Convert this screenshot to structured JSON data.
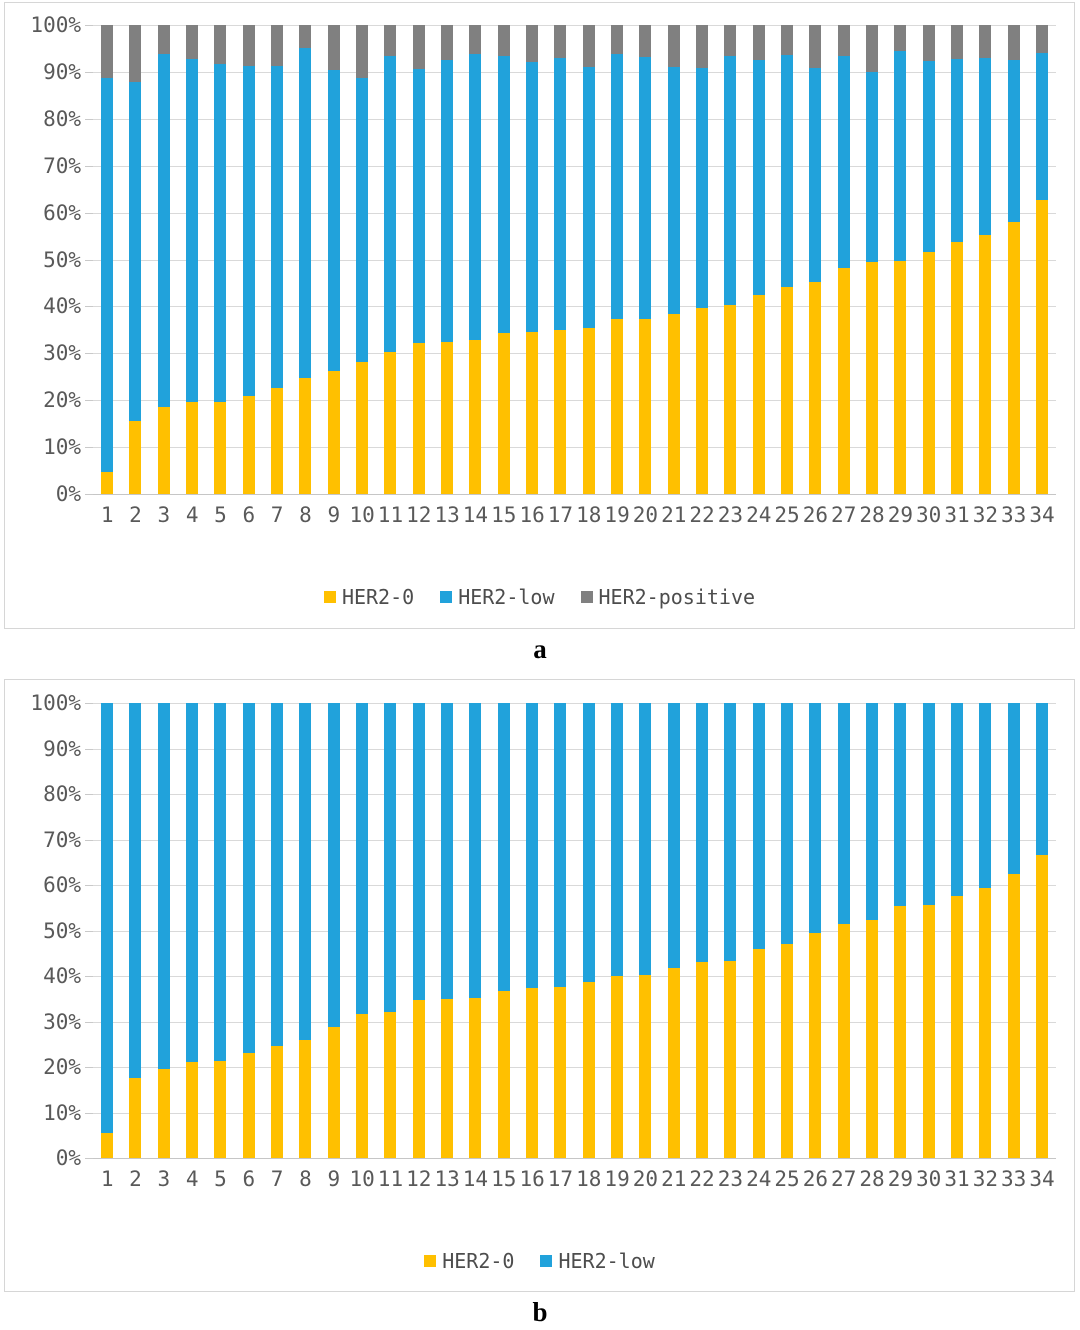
{
  "figure": {
    "background": "#ffffff",
    "panels": [
      {
        "label": "a"
      },
      {
        "label": "b"
      }
    ]
  },
  "colors": {
    "her2_0": "#FFC000",
    "her2_low": "#21A2DB",
    "her2_positive": "#808080",
    "axis_text": "#595959",
    "gridline": "#D9D9D9",
    "card_border": "#D6D6D6"
  },
  "chart_data": [
    {
      "type": "bar",
      "subtype": "stacked-100-percent",
      "panel": "a",
      "title": "",
      "xlabel": "",
      "ylabel": "",
      "ylim": [
        0,
        100
      ],
      "grid": true,
      "legend_position": "bottom",
      "y_ticks": [
        "100%",
        "90%",
        "80%",
        "70%",
        "60%",
        "50%",
        "40%",
        "30%",
        "20%",
        "10%",
        "0%"
      ],
      "categories": [
        "1",
        "2",
        "3",
        "4",
        "5",
        "6",
        "7",
        "8",
        "9",
        "10",
        "11",
        "12",
        "13",
        "14",
        "15",
        "16",
        "17",
        "18",
        "19",
        "20",
        "21",
        "22",
        "23",
        "24",
        "25",
        "26",
        "27",
        "28",
        "29",
        "30",
        "31",
        "32",
        "33",
        "34"
      ],
      "series": [
        {
          "name": "HER2-0",
          "color": "#FFC000",
          "values": [
            4.8,
            15.5,
            18.5,
            19.6,
            19.7,
            21.0,
            22.6,
            24.8,
            26.3,
            28.1,
            30.3,
            32.2,
            32.5,
            32.9,
            34.3,
            34.6,
            34.9,
            35.3,
            37.4,
            37.4,
            38.3,
            39.6,
            40.3,
            42.4,
            44.2,
            45.1,
            48.2,
            49.4,
            49.6,
            51.6,
            53.8,
            55.2,
            58.1,
            62.6
          ]
        },
        {
          "name": "HER2-low",
          "color": "#21A2DB",
          "values": [
            83.9,
            72.3,
            75.3,
            73.1,
            72.0,
            70.2,
            68.7,
            70.4,
            64.2,
            60.5,
            63.0,
            58.5,
            60.0,
            61.0,
            59.1,
            57.6,
            58.0,
            55.8,
            56.5,
            55.8,
            52.8,
            51.3,
            53.1,
            50.1,
            49.4,
            45.8,
            45.1,
            40.6,
            44.9,
            40.7,
            38.9,
            37.7,
            34.4,
            31.5
          ]
        },
        {
          "name": "HER2-positive",
          "color": "#808080",
          "values": [
            11.3,
            12.2,
            6.2,
            7.3,
            8.3,
            8.8,
            8.7,
            4.8,
            9.5,
            11.4,
            6.7,
            9.3,
            7.5,
            6.1,
            6.6,
            7.8,
            7.1,
            8.9,
            6.1,
            6.8,
            8.9,
            9.1,
            6.6,
            7.5,
            6.4,
            9.1,
            6.7,
            10.0,
            5.5,
            7.7,
            7.3,
            7.1,
            7.5,
            5.9
          ]
        }
      ]
    },
    {
      "type": "bar",
      "subtype": "stacked-100-percent",
      "panel": "b",
      "title": "",
      "xlabel": "",
      "ylabel": "",
      "ylim": [
        0,
        100
      ],
      "grid": true,
      "legend_position": "bottom",
      "y_ticks": [
        "100%",
        "90%",
        "80%",
        "70%",
        "60%",
        "50%",
        "40%",
        "30%",
        "20%",
        "10%",
        "0%"
      ],
      "categories": [
        "1",
        "2",
        "3",
        "4",
        "5",
        "6",
        "7",
        "8",
        "9",
        "10",
        "11",
        "12",
        "13",
        "14",
        "15",
        "16",
        "17",
        "18",
        "19",
        "20",
        "21",
        "22",
        "23",
        "24",
        "25",
        "26",
        "27",
        "28",
        "29",
        "30",
        "31",
        "32",
        "33",
        "34"
      ],
      "series": [
        {
          "name": "HER2-0",
          "color": "#FFC000",
          "values": [
            5.5,
            17.6,
            19.5,
            21.1,
            21.4,
            23.0,
            24.7,
            25.9,
            28.9,
            31.6,
            32.2,
            34.7,
            34.9,
            35.1,
            36.6,
            37.3,
            37.5,
            38.6,
            40.0,
            40.2,
            41.8,
            43.0,
            43.3,
            45.9,
            47.0,
            49.5,
            51.4,
            52.3,
            55.3,
            55.5,
            57.6,
            59.3,
            62.5,
            66.5
          ]
        },
        {
          "name": "HER2-low",
          "color": "#21A2DB",
          "values": [
            94.5,
            82.4,
            80.5,
            78.9,
            78.6,
            77.0,
            75.3,
            74.1,
            71.1,
            68.4,
            67.8,
            65.3,
            65.1,
            64.9,
            63.4,
            62.7,
            62.5,
            61.4,
            60.0,
            59.8,
            58.2,
            57.0,
            56.7,
            54.1,
            53.0,
            50.5,
            48.6,
            47.7,
            44.7,
            44.5,
            42.4,
            40.7,
            37.5,
            33.5
          ]
        }
      ]
    }
  ]
}
